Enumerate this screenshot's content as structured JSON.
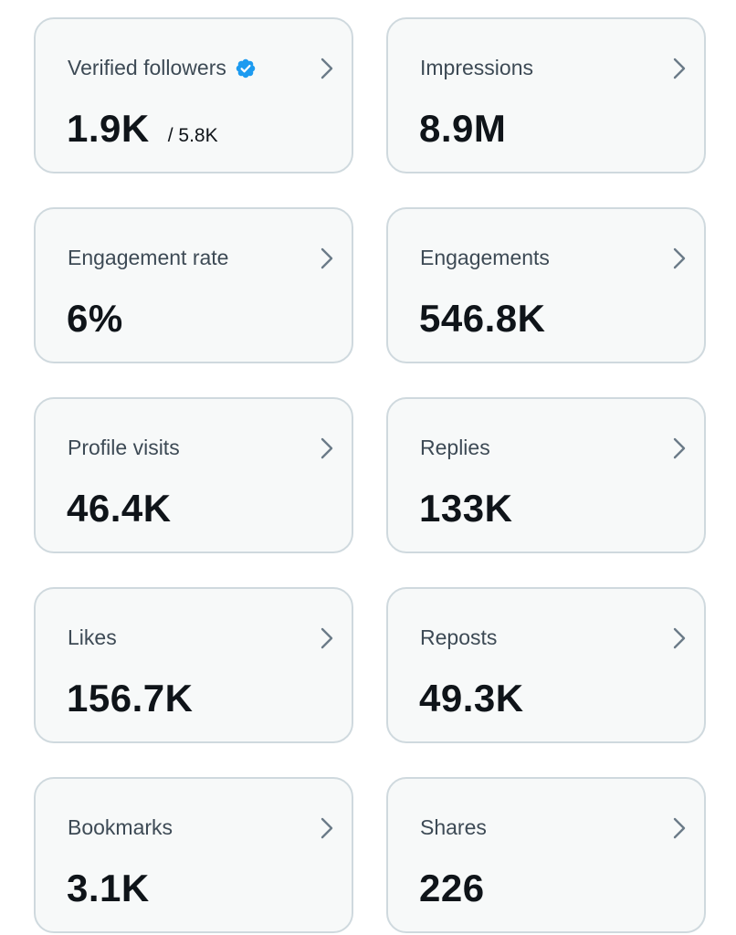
{
  "metrics": [
    {
      "label": "Verified followers",
      "value": "1.9K",
      "sub": "/ 5.8K",
      "verified": true
    },
    {
      "label": "Impressions",
      "value": "8.9M"
    },
    {
      "label": "Engagement rate",
      "value": "6%"
    },
    {
      "label": "Engagements",
      "value": "546.8K"
    },
    {
      "label": "Profile visits",
      "value": "46.4K"
    },
    {
      "label": "Replies",
      "value": "133K"
    },
    {
      "label": "Likes",
      "value": "156.7K"
    },
    {
      "label": "Reposts",
      "value": "49.3K"
    },
    {
      "label": "Bookmarks",
      "value": "3.1K"
    },
    {
      "label": "Shares",
      "value": "226"
    }
  ],
  "icons": {
    "verified": "verified-badge-icon",
    "chevron": "chevron-right-icon"
  },
  "colors": {
    "card_bg": "#f7f9f9",
    "card_border": "#cfd9de",
    "label": "#3d4a55",
    "value": "#0f1419",
    "verified_blue": "#1d9bf0",
    "chevron": "#6b7b88"
  }
}
